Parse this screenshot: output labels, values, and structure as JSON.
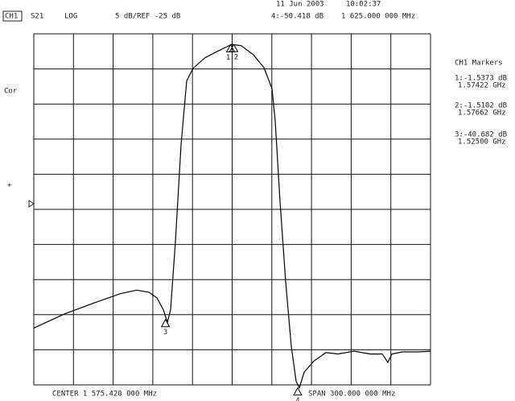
{
  "chart_data": {
    "type": "line",
    "channel": "CH1",
    "parameter": "S21",
    "format": "LOG",
    "scale": "5 dB/REF -25 dB",
    "date": "11 Jun 2003",
    "time": "10:02:37",
    "correction": "Cor",
    "markers_title": "CH1 Markers",
    "center": "CENTER 1 575.420 000 MHz",
    "span": "SPAN 300.000 000 MHz",
    "xlim": [
      1425.42,
      1725.42
    ],
    "ylim": [
      -50,
      0
    ],
    "xticks": [
      1425.42,
      1455.42,
      1485.42,
      1515.42,
      1545.42,
      1575.42,
      1605.42,
      1635.42,
      1665.42,
      1695.42,
      1725.42
    ],
    "yticks": [
      0,
      -5,
      -10,
      -15,
      -20,
      -25,
      -30,
      -35,
      -40,
      -45,
      -50
    ],
    "grid": true,
    "x": [
      1425.42,
      1448.54,
      1472.88,
      1491.14,
      1503.31,
      1512.44,
      1518.53,
      1523.4,
      1526.44,
      1528.87,
      1532.52,
      1536.78,
      1541.04,
      1545.91,
      1555.04,
      1564.17,
      1575.12,
      1582.42,
      1591.55,
      1599.46,
      1605.54,
      1607.98,
      1611.63,
      1615.89,
      1620.15,
      1623.8,
      1626.24,
      1629.89,
      1637.19,
      1646.32,
      1655.45,
      1667.62,
      1679.79,
      1688.92,
      1693.18,
      1696.22,
      1704.13,
      1716.3,
      1725.42
    ],
    "series": [
      {
        "color": "#000000",
        "values": [
          -41.9,
          -39.9,
          -38.2,
          -37.0,
          -36.5,
          -36.8,
          -37.6,
          -39.3,
          -41.1,
          -39.3,
          -29.6,
          -15.8,
          -6.7,
          -4.9,
          -3.4,
          -2.5,
          -1.5,
          -1.7,
          -3.0,
          -4.8,
          -7.8,
          -12.4,
          -23.9,
          -35.3,
          -44.5,
          -49.5,
          -50.4,
          -48.2,
          -46.6,
          -45.4,
          -45.6,
          -45.2,
          -45.6,
          -45.6,
          -46.8,
          -45.6,
          -45.3,
          -45.3,
          -45.2
        ]
      }
    ],
    "markers": [
      {
        "label": "1",
        "x": 1574.22,
        "value": -1.5373,
        "readout": "1:-1.5373 dB",
        "freq": "1.57422 GHz"
      },
      {
        "label": "2",
        "x": 1576.62,
        "value": -1.5102,
        "readout": "2:-1.5102 dB",
        "freq": "1.57662 GHz"
      },
      {
        "label": "3",
        "x": 1525.0,
        "value": -40.682,
        "readout": "3:-40.682 dB",
        "freq": "1.52500 GHz"
      },
      {
        "label": "4",
        "x": 1625.0,
        "value": -50.418,
        "readout": "4:-50.418 dB",
        "freq": "1 625.000 000 MHz"
      }
    ]
  }
}
